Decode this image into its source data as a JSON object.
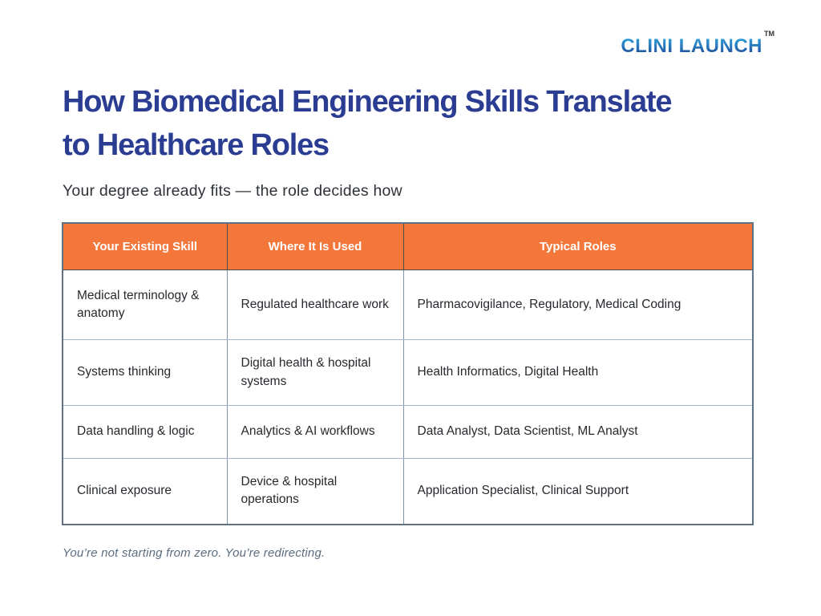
{
  "brand": {
    "name": "CLINI LAUNCH",
    "trademark": "TM"
  },
  "header": {
    "title_lines": [
      "How Biomedical Engineering Skills Translate",
      "to Healthcare Roles"
    ],
    "subtitle": "Your degree already fits — the role decides how"
  },
  "table": {
    "columns": [
      "Your Existing Skill",
      "Where It Is Used",
      "Typical Roles"
    ],
    "rows": [
      {
        "skill": "Medical terminology & anatomy",
        "where_used": "Regulated healthcare work",
        "typical_roles": "Pharmacovigilance, Regulatory, Medical Coding"
      },
      {
        "skill": "Systems thinking",
        "where_used": "Digital health & hospital systems",
        "typical_roles": "Health Informatics, Digital Health"
      },
      {
        "skill": "Data handling & logic",
        "where_used": "Analytics & AI workflows",
        "typical_roles": "Data Analyst, Data Scientist, ML Analyst"
      },
      {
        "skill": "Clinical exposure",
        "where_used": "Device & hospital operations",
        "typical_roles": "Application Specialist, Clinical Support"
      }
    ]
  },
  "footer": {
    "note": "You’re not starting from zero. You’re redirecting."
  },
  "theme": {
    "title_color": "#2B3D92",
    "subtitle_color": "#2E3238",
    "table_header_bg": "#F3763B",
    "table_header_text": "#FFFFFF",
    "cell_text_color": "#26292D",
    "outer_border_color": "#5E7284",
    "inner_border_v": "#7A93A9",
    "inner_border_h": "#A6B8C7",
    "header_divider": "#4F4A44",
    "footer_color": "#5B6C7F",
    "logo_gradient_top": "#33ADE3",
    "logo_gradient_bottom": "#1C3E90",
    "trademark_color": "#333333"
  }
}
